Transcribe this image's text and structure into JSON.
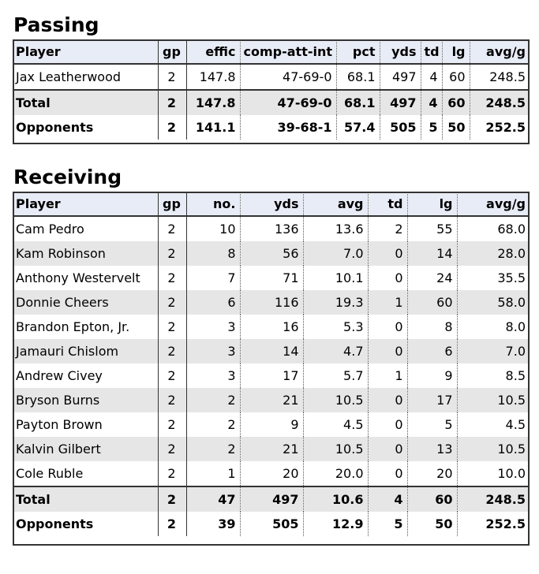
{
  "passing": {
    "title": "Passing",
    "headers": [
      "Player",
      "gp",
      "effic",
      "comp-att-int",
      "pct",
      "yds",
      "td",
      "lg",
      "avg/g"
    ],
    "rows": [
      [
        "Jax Leatherwood",
        "2",
        "147.8",
        "47-69-0",
        "68.1",
        "497",
        "4",
        "60",
        "248.5"
      ]
    ],
    "total": [
      "Total",
      "2",
      "147.8",
      "47-69-0",
      "68.1",
      "497",
      "4",
      "60",
      "248.5"
    ],
    "opponents": [
      "Opponents",
      "2",
      "141.1",
      "39-68-1",
      "57.4",
      "505",
      "5",
      "50",
      "252.5"
    ]
  },
  "receiving": {
    "title": "Receiving",
    "headers": [
      "Player",
      "gp",
      "no.",
      "yds",
      "avg",
      "td",
      "lg",
      "avg/g"
    ],
    "rows": [
      [
        "Cam Pedro",
        "2",
        "10",
        "136",
        "13.6",
        "2",
        "55",
        "68.0"
      ],
      [
        "Kam Robinson",
        "2",
        "8",
        "56",
        "7.0",
        "0",
        "14",
        "28.0"
      ],
      [
        "Anthony Westervelt",
        "2",
        "7",
        "71",
        "10.1",
        "0",
        "24",
        "35.5"
      ],
      [
        "Donnie Cheers",
        "2",
        "6",
        "116",
        "19.3",
        "1",
        "60",
        "58.0"
      ],
      [
        "Brandon Epton, Jr.",
        "2",
        "3",
        "16",
        "5.3",
        "0",
        "8",
        "8.0"
      ],
      [
        "Jamauri Chislom",
        "2",
        "3",
        "14",
        "4.7",
        "0",
        "6",
        "7.0"
      ],
      [
        "Andrew Civey",
        "2",
        "3",
        "17",
        "5.7",
        "1",
        "9",
        "8.5"
      ],
      [
        "Bryson Burns",
        "2",
        "2",
        "21",
        "10.5",
        "0",
        "17",
        "10.5"
      ],
      [
        "Payton Brown",
        "2",
        "2",
        "9",
        "4.5",
        "0",
        "5",
        "4.5"
      ],
      [
        "Kalvin Gilbert",
        "2",
        "2",
        "21",
        "10.5",
        "0",
        "13",
        "10.5"
      ],
      [
        "Cole Ruble",
        "2",
        "1",
        "20",
        "20.0",
        "0",
        "20",
        "10.0"
      ]
    ],
    "total": [
      "Total",
      "2",
      "47",
      "497",
      "10.6",
      "4",
      "60",
      "248.5"
    ],
    "opponents": [
      "Opponents",
      "2",
      "39",
      "505",
      "12.9",
      "5",
      "50",
      "252.5"
    ]
  }
}
